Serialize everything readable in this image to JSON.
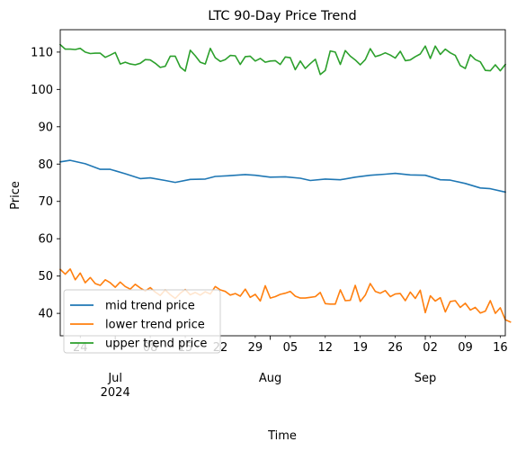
{
  "chart_data": {
    "type": "line",
    "title": "LTC 90-Day Price Trend",
    "xlabel": "Time",
    "ylabel": "Price",
    "x_start": "2024-06-20",
    "x_end": "2024-09-17",
    "ylim": [
      34,
      116
    ],
    "yticks": [
      40,
      50,
      60,
      70,
      80,
      90,
      100,
      110
    ],
    "day_ticks": [
      {
        "date": "2024-06-24",
        "label": "24"
      },
      {
        "date": "2024-07-08",
        "label": "08"
      },
      {
        "date": "2024-07-15",
        "label": "15"
      },
      {
        "date": "2024-07-22",
        "label": "22"
      },
      {
        "date": "2024-07-29",
        "label": "29"
      },
      {
        "date": "2024-08-05",
        "label": "05"
      },
      {
        "date": "2024-08-12",
        "label": "12"
      },
      {
        "date": "2024-08-19",
        "label": "19"
      },
      {
        "date": "2024-08-26",
        "label": "26"
      },
      {
        "date": "2024-09-02",
        "label": "02"
      },
      {
        "date": "2024-09-09",
        "label": "09"
      },
      {
        "date": "2024-09-16",
        "label": "16"
      }
    ],
    "month_ticks": [
      {
        "date": "2024-07-01",
        "label": "Jul",
        "year": "2024"
      },
      {
        "date": "2024-08-01",
        "label": "Aug",
        "year": ""
      },
      {
        "date": "2024-09-01",
        "label": "Sep",
        "year": ""
      }
    ],
    "grid": false,
    "legend_position": "lower-left",
    "series": [
      {
        "name": "mid trend price",
        "color": "#1f77b4",
        "points": [
          [
            "2024-06-20",
            80.6
          ],
          [
            "2024-06-22",
            81.0
          ],
          [
            "2024-06-25",
            80.1
          ],
          [
            "2024-06-28",
            78.6
          ],
          [
            "2024-06-30",
            78.6
          ],
          [
            "2024-07-03",
            77.4
          ],
          [
            "2024-07-06",
            76.1
          ],
          [
            "2024-07-08",
            76.3
          ],
          [
            "2024-07-11",
            75.6
          ],
          [
            "2024-07-13",
            75.1
          ],
          [
            "2024-07-16",
            75.9
          ],
          [
            "2024-07-19",
            76.0
          ],
          [
            "2024-07-21",
            76.7
          ],
          [
            "2024-07-24",
            76.9
          ],
          [
            "2024-07-27",
            77.2
          ],
          [
            "2024-07-29",
            77.0
          ],
          [
            "2024-08-01",
            76.5
          ],
          [
            "2024-08-04",
            76.6
          ],
          [
            "2024-08-07",
            76.2
          ],
          [
            "2024-08-09",
            75.6
          ],
          [
            "2024-08-12",
            76.0
          ],
          [
            "2024-08-15",
            75.8
          ],
          [
            "2024-08-18",
            76.5
          ],
          [
            "2024-08-21",
            77.0
          ],
          [
            "2024-08-24",
            77.3
          ],
          [
            "2024-08-26",
            77.5
          ],
          [
            "2024-08-29",
            77.1
          ],
          [
            "2024-09-01",
            77.0
          ],
          [
            "2024-09-04",
            75.8
          ],
          [
            "2024-09-06",
            75.7
          ],
          [
            "2024-09-09",
            74.8
          ],
          [
            "2024-09-12",
            73.6
          ],
          [
            "2024-09-14",
            73.4
          ],
          [
            "2024-09-17",
            72.5
          ]
        ]
      },
      {
        "name": "lower trend price",
        "color": "#ff7f0e",
        "points": [
          [
            "2024-06-20",
            51.8
          ],
          [
            "2024-06-21",
            50.5
          ],
          [
            "2024-06-22",
            51.9
          ],
          [
            "2024-06-23",
            49.0
          ],
          [
            "2024-06-24",
            50.8
          ],
          [
            "2024-06-25",
            48.2
          ],
          [
            "2024-06-26",
            49.6
          ],
          [
            "2024-06-27",
            48.0
          ],
          [
            "2024-06-28",
            47.5
          ],
          [
            "2024-06-29",
            49.0
          ],
          [
            "2024-06-30",
            48.2
          ],
          [
            "2024-07-01",
            47.0
          ],
          [
            "2024-07-02",
            48.4
          ],
          [
            "2024-07-03",
            47.2
          ],
          [
            "2024-07-04",
            46.5
          ],
          [
            "2024-07-05",
            47.8
          ],
          [
            "2024-07-06",
            46.8
          ],
          [
            "2024-07-07",
            46.0
          ],
          [
            "2024-07-08",
            46.9
          ],
          [
            "2024-07-09",
            45.7
          ],
          [
            "2024-07-10",
            44.8
          ],
          [
            "2024-07-11",
            46.3
          ],
          [
            "2024-07-12",
            45.0
          ],
          [
            "2024-07-13",
            44.0
          ],
          [
            "2024-07-14",
            45.4
          ],
          [
            "2024-07-15",
            46.4
          ],
          [
            "2024-07-16",
            45.0
          ],
          [
            "2024-07-17",
            45.6
          ],
          [
            "2024-07-18",
            44.9
          ],
          [
            "2024-07-19",
            45.8
          ],
          [
            "2024-07-20",
            45.2
          ],
          [
            "2024-07-21",
            47.2
          ],
          [
            "2024-07-22",
            46.3
          ],
          [
            "2024-07-23",
            45.9
          ],
          [
            "2024-07-24",
            44.9
          ],
          [
            "2024-07-25",
            45.3
          ],
          [
            "2024-07-26",
            44.6
          ],
          [
            "2024-07-27",
            46.5
          ],
          [
            "2024-07-28",
            44.3
          ],
          [
            "2024-07-29",
            45.1
          ],
          [
            "2024-07-30",
            43.3
          ],
          [
            "2024-07-31",
            47.4
          ],
          [
            "2024-08-01",
            44.1
          ],
          [
            "2024-08-02",
            44.5
          ],
          [
            "2024-08-03",
            45.1
          ],
          [
            "2024-08-04",
            45.4
          ],
          [
            "2024-08-05",
            45.9
          ],
          [
            "2024-08-06",
            44.6
          ],
          [
            "2024-08-07",
            44.1
          ],
          [
            "2024-08-08",
            44.1
          ],
          [
            "2024-08-09",
            44.3
          ],
          [
            "2024-08-10",
            44.5
          ],
          [
            "2024-08-11",
            45.6
          ],
          [
            "2024-08-12",
            42.6
          ],
          [
            "2024-08-13",
            42.5
          ],
          [
            "2024-08-14",
            42.5
          ],
          [
            "2024-08-15",
            46.3
          ],
          [
            "2024-08-16",
            43.4
          ],
          [
            "2024-08-17",
            43.5
          ],
          [
            "2024-08-18",
            47.5
          ],
          [
            "2024-08-19",
            43.2
          ],
          [
            "2024-08-20",
            44.9
          ],
          [
            "2024-08-21",
            48.0
          ],
          [
            "2024-08-22",
            45.9
          ],
          [
            "2024-08-23",
            45.4
          ],
          [
            "2024-08-24",
            46.1
          ],
          [
            "2024-08-25",
            44.5
          ],
          [
            "2024-08-26",
            45.2
          ],
          [
            "2024-08-27",
            45.3
          ],
          [
            "2024-08-28",
            43.4
          ],
          [
            "2024-08-29",
            45.7
          ],
          [
            "2024-08-30",
            44.0
          ],
          [
            "2024-08-31",
            46.2
          ],
          [
            "2024-09-01",
            40.2
          ],
          [
            "2024-09-02",
            44.7
          ],
          [
            "2024-09-03",
            43.3
          ],
          [
            "2024-09-04",
            44.2
          ],
          [
            "2024-09-05",
            40.4
          ],
          [
            "2024-09-06",
            43.2
          ],
          [
            "2024-09-07",
            43.4
          ],
          [
            "2024-09-08",
            41.6
          ],
          [
            "2024-09-09",
            42.7
          ],
          [
            "2024-09-10",
            40.9
          ],
          [
            "2024-09-11",
            41.6
          ],
          [
            "2024-09-12",
            40.1
          ],
          [
            "2024-09-13",
            40.6
          ],
          [
            "2024-09-14",
            43.4
          ],
          [
            "2024-09-15",
            40.0
          ],
          [
            "2024-09-16",
            41.5
          ],
          [
            "2024-09-17",
            38.3
          ],
          [
            "2024-09-18",
            37.7
          ]
        ]
      },
      {
        "name": "upper trend price",
        "color": "#2ca02c",
        "points": [
          [
            "2024-06-20",
            112.0
          ],
          [
            "2024-06-21",
            110.8
          ],
          [
            "2024-06-22",
            110.8
          ],
          [
            "2024-06-23",
            110.7
          ],
          [
            "2024-06-24",
            111.0
          ],
          [
            "2024-06-25",
            110.0
          ],
          [
            "2024-06-26",
            109.6
          ],
          [
            "2024-06-27",
            109.7
          ],
          [
            "2024-06-28",
            109.7
          ],
          [
            "2024-06-29",
            108.6
          ],
          [
            "2024-06-30",
            109.2
          ],
          [
            "2024-07-01",
            109.9
          ],
          [
            "2024-07-02",
            106.8
          ],
          [
            "2024-07-03",
            107.3
          ],
          [
            "2024-07-04",
            106.8
          ],
          [
            "2024-07-05",
            106.6
          ],
          [
            "2024-07-06",
            107.0
          ],
          [
            "2024-07-07",
            108.0
          ],
          [
            "2024-07-08",
            107.9
          ],
          [
            "2024-07-09",
            107.0
          ],
          [
            "2024-07-10",
            105.9
          ],
          [
            "2024-07-11",
            106.2
          ],
          [
            "2024-07-12",
            108.9
          ],
          [
            "2024-07-13",
            108.9
          ],
          [
            "2024-07-14",
            106.0
          ],
          [
            "2024-07-15",
            104.9
          ],
          [
            "2024-07-16",
            110.5
          ],
          [
            "2024-07-17",
            109.0
          ],
          [
            "2024-07-18",
            107.3
          ],
          [
            "2024-07-19",
            106.8
          ],
          [
            "2024-07-20",
            111.0
          ],
          [
            "2024-07-21",
            108.5
          ],
          [
            "2024-07-22",
            107.5
          ],
          [
            "2024-07-23",
            108.0
          ],
          [
            "2024-07-24",
            109.1
          ],
          [
            "2024-07-25",
            109.0
          ],
          [
            "2024-07-26",
            106.7
          ],
          [
            "2024-07-27",
            108.8
          ],
          [
            "2024-07-28",
            108.9
          ],
          [
            "2024-07-29",
            107.6
          ],
          [
            "2024-07-30",
            108.3
          ],
          [
            "2024-07-31",
            107.3
          ],
          [
            "2024-08-01",
            107.6
          ],
          [
            "2024-08-02",
            107.7
          ],
          [
            "2024-08-03",
            106.7
          ],
          [
            "2024-08-04",
            108.7
          ],
          [
            "2024-08-05",
            108.5
          ],
          [
            "2024-08-06",
            105.3
          ],
          [
            "2024-08-07",
            107.6
          ],
          [
            "2024-08-08",
            105.6
          ],
          [
            "2024-08-09",
            106.9
          ],
          [
            "2024-08-10",
            108.1
          ],
          [
            "2024-08-11",
            104.0
          ],
          [
            "2024-08-12",
            105.1
          ],
          [
            "2024-08-13",
            110.3
          ],
          [
            "2024-08-14",
            110.0
          ],
          [
            "2024-08-15",
            106.7
          ],
          [
            "2024-08-16",
            110.4
          ],
          [
            "2024-08-17",
            108.9
          ],
          [
            "2024-08-18",
            107.9
          ],
          [
            "2024-08-19",
            106.6
          ],
          [
            "2024-08-20",
            108.0
          ],
          [
            "2024-08-21",
            110.9
          ],
          [
            "2024-08-22",
            108.8
          ],
          [
            "2024-08-23",
            109.2
          ],
          [
            "2024-08-24",
            109.8
          ],
          [
            "2024-08-25",
            109.2
          ],
          [
            "2024-08-26",
            108.4
          ],
          [
            "2024-08-27",
            110.2
          ],
          [
            "2024-08-28",
            107.7
          ],
          [
            "2024-08-29",
            107.9
          ],
          [
            "2024-08-30",
            108.8
          ],
          [
            "2024-08-31",
            109.5
          ],
          [
            "2024-09-01",
            111.6
          ],
          [
            "2024-09-02",
            108.3
          ],
          [
            "2024-09-03",
            111.6
          ],
          [
            "2024-09-04",
            109.4
          ],
          [
            "2024-09-05",
            110.8
          ],
          [
            "2024-09-06",
            109.8
          ],
          [
            "2024-09-07",
            109.1
          ],
          [
            "2024-09-08",
            106.4
          ],
          [
            "2024-09-09",
            105.6
          ],
          [
            "2024-09-10",
            109.3
          ],
          [
            "2024-09-11",
            108.0
          ],
          [
            "2024-09-12",
            107.4
          ],
          [
            "2024-09-13",
            105.1
          ],
          [
            "2024-09-14",
            105.0
          ],
          [
            "2024-09-15",
            106.6
          ],
          [
            "2024-09-16",
            105.0
          ],
          [
            "2024-09-17",
            106.7
          ]
        ]
      }
    ]
  }
}
